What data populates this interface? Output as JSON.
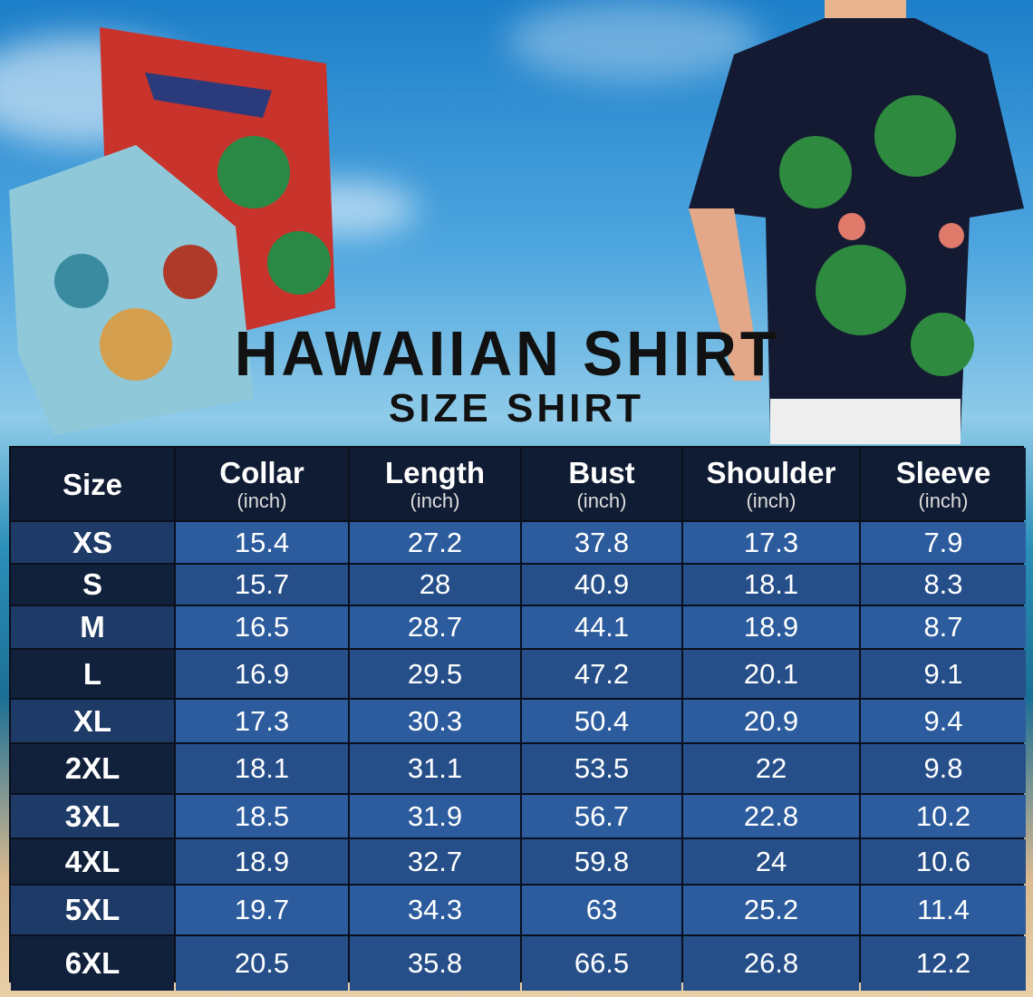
{
  "title": "HAWAIIAN SHIRT",
  "subtitle": "SIZE SHIRT",
  "table": {
    "headers": [
      {
        "label": "Size",
        "unit": ""
      },
      {
        "label": "Collar",
        "unit": "(inch)"
      },
      {
        "label": "Length",
        "unit": "(inch)"
      },
      {
        "label": "Bust",
        "unit": "(inch)"
      },
      {
        "label": "Shoulder",
        "unit": "(inch)"
      },
      {
        "label": "Sleeve",
        "unit": "(inch)"
      }
    ],
    "rows": [
      [
        "XS",
        "15.4",
        "27.2",
        "37.8",
        "17.3",
        "7.9"
      ],
      [
        "S",
        "15.7",
        "28",
        "40.9",
        "18.1",
        "8.3"
      ],
      [
        "M",
        "16.5",
        "28.7",
        "44.1",
        "18.9",
        "8.7"
      ],
      [
        "L",
        "16.9",
        "29.5",
        "47.2",
        "20.1",
        "9.1"
      ],
      [
        "XL",
        "17.3",
        "30.3",
        "50.4",
        "20.9",
        "9.4"
      ],
      [
        "2XL",
        "18.1",
        "31.1",
        "53.5",
        "22",
        "9.8"
      ],
      [
        "3XL",
        "18.5",
        "31.9",
        "56.7",
        "22.8",
        "10.2"
      ],
      [
        "4XL",
        "18.9",
        "32.7",
        "59.8",
        "24",
        "10.6"
      ],
      [
        "5XL",
        "19.7",
        "34.3",
        "63",
        "25.2",
        "11.4"
      ],
      [
        "6XL",
        "20.5",
        "35.8",
        "66.5",
        "26.8",
        "12.2"
      ]
    ]
  },
  "colors": {
    "header_bg": "#101c33",
    "cell_light": "#2c5c9e",
    "cell_dark": "#264f8a",
    "title": "#111111"
  }
}
